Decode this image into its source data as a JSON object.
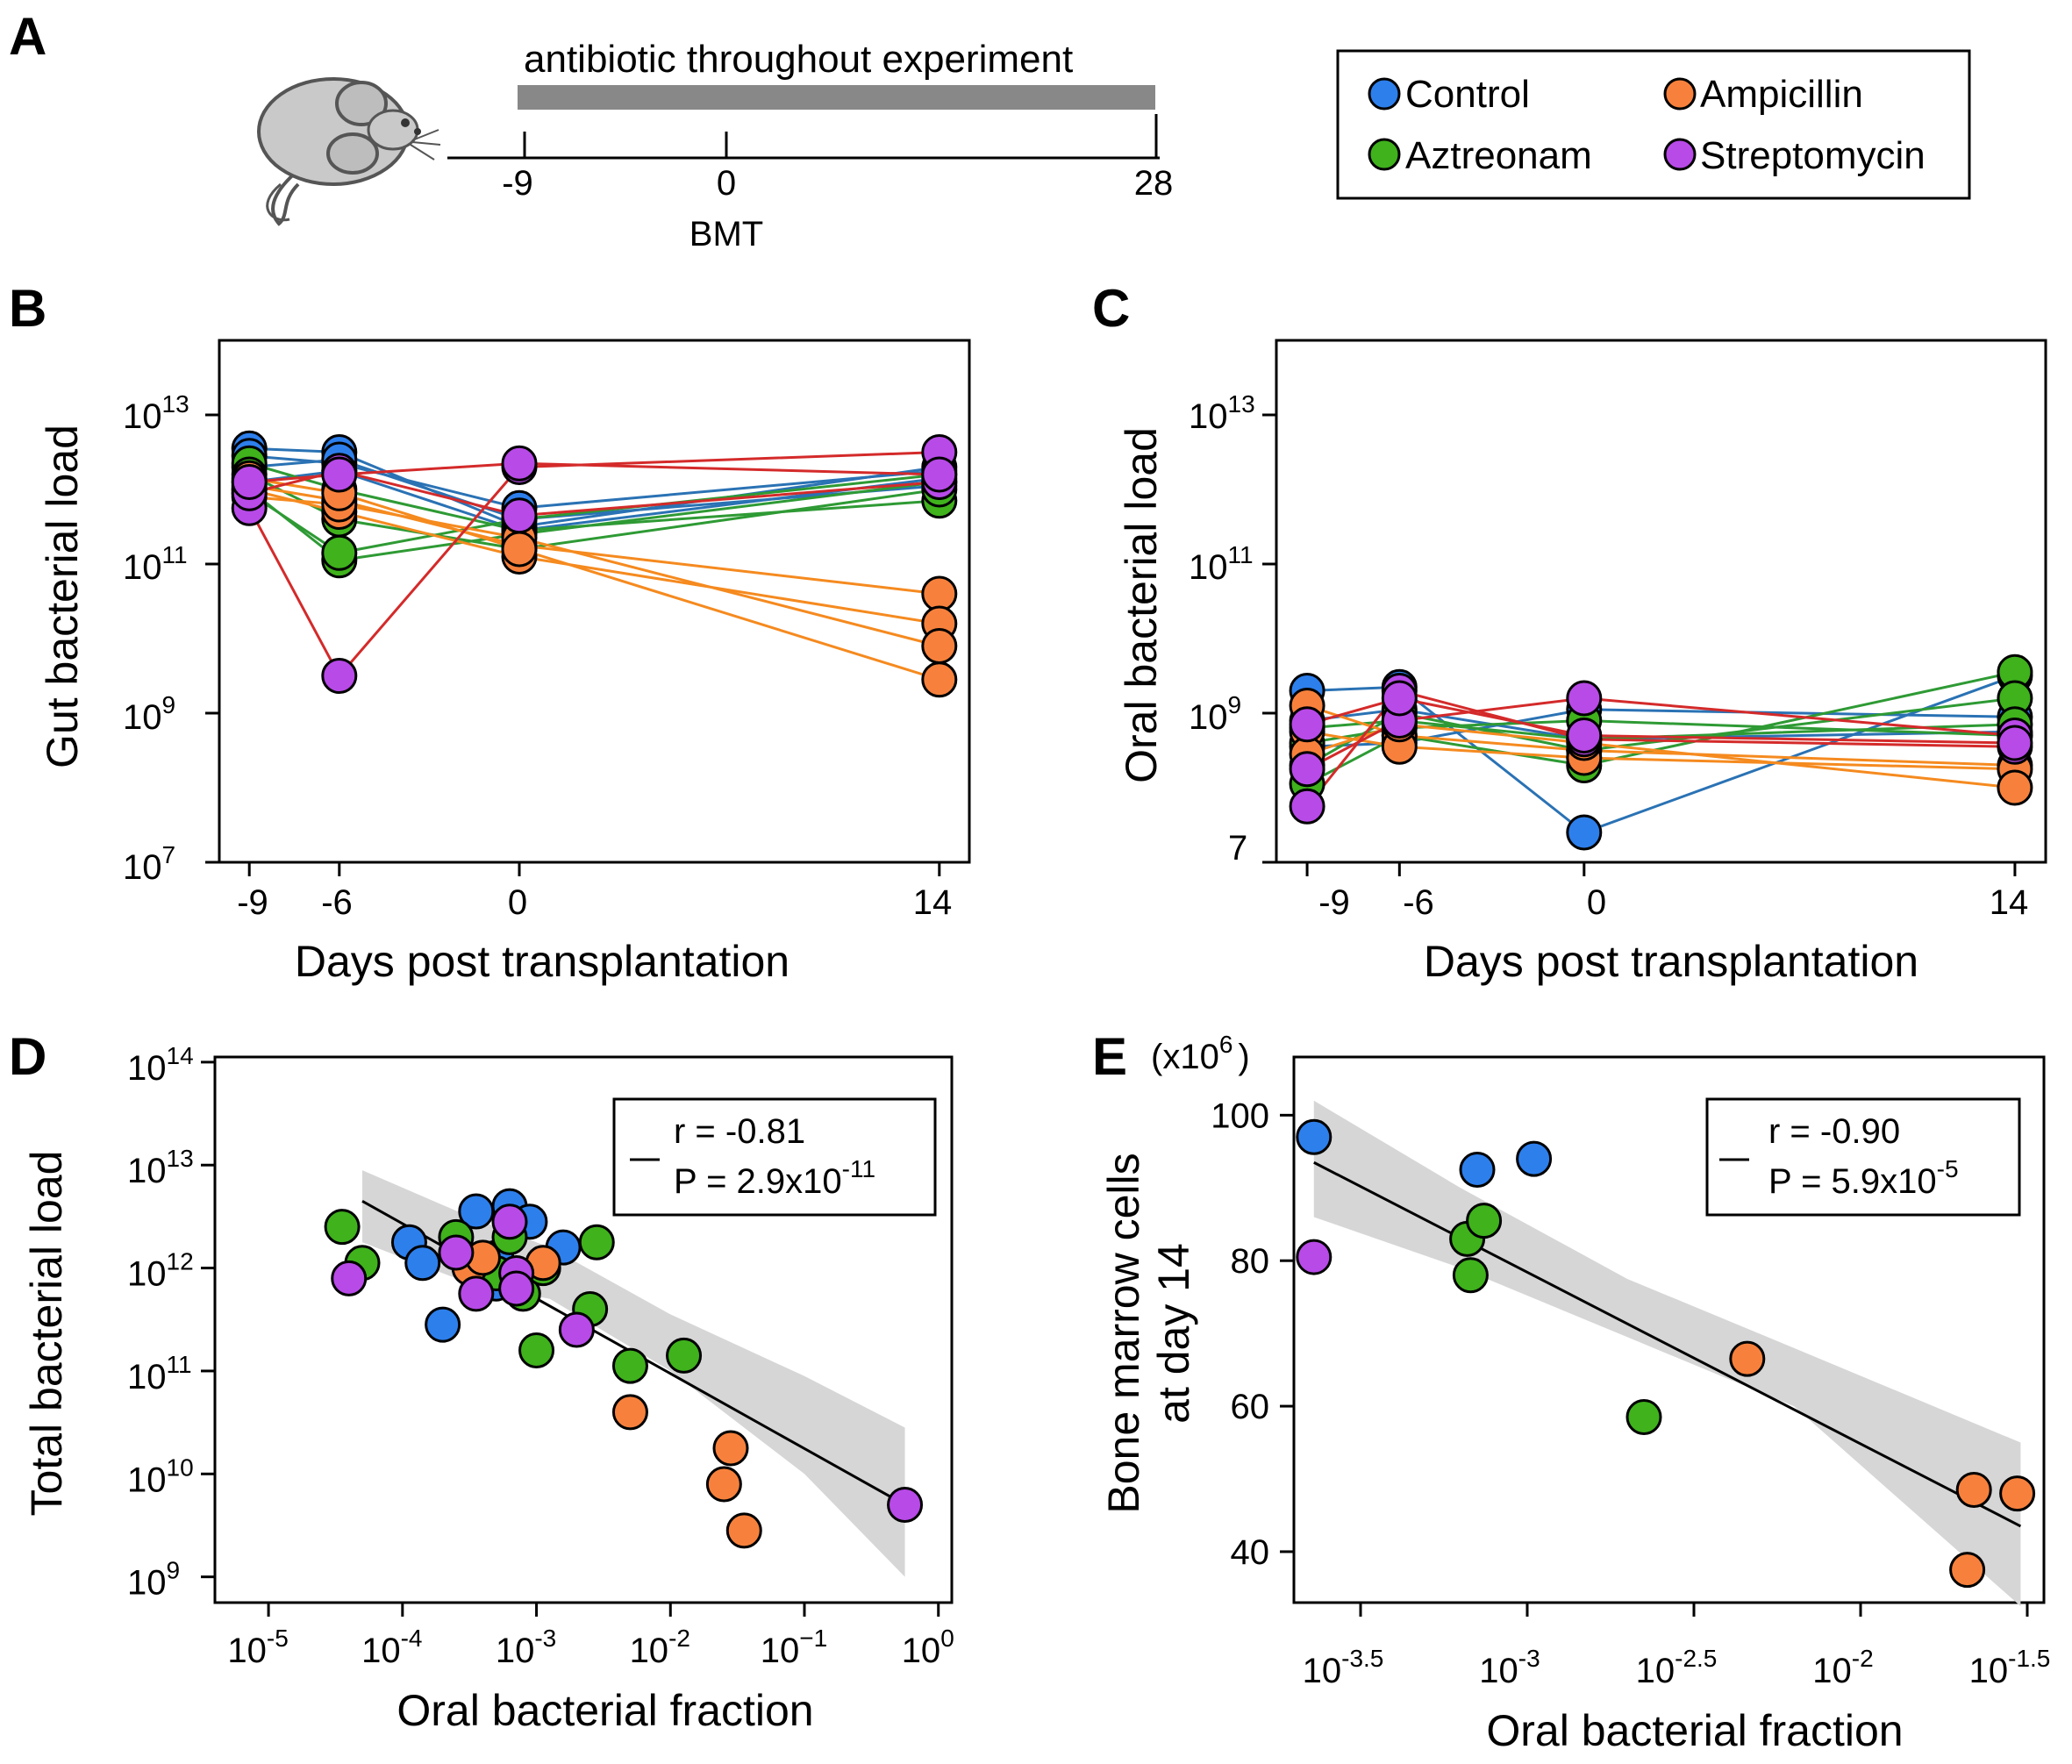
{
  "figure": {
    "panel_labels": [
      "A",
      "B",
      "C",
      "D",
      "E"
    ]
  },
  "colors": {
    "Control": "#2d7fec",
    "Aztreonam": "#3fb21c",
    "Ampicillin": "#f7813c",
    "Streptomycin": "#b84ae8",
    "line_control": "#2a72b4",
    "line_aztreonam": "#2e9a34",
    "line_ampicillin": "#f58a1f",
    "line_streptomycin": "#d42a2a",
    "ci_band": "#d6d6d6",
    "timeline_bar": "#888888"
  },
  "legend": {
    "entries": [
      {
        "label": "Control",
        "color": "#2d7fec"
      },
      {
        "label": "Ampicillin",
        "color": "#f7813c"
      },
      {
        "label": "Aztreonam",
        "color": "#3fb21c"
      },
      {
        "label": "Streptomycin",
        "color": "#b84ae8"
      }
    ]
  },
  "timeline": {
    "bar_label": "antibiotic throughout experiment",
    "ticks": [
      "-9",
      "0",
      "28"
    ],
    "event_label": "BMT",
    "icon": "mouse-icon"
  },
  "panel_b": {
    "ylabel": "Gut bacterial load",
    "xlabel": "Days post transplantation",
    "xticks": [
      "-9",
      "-6",
      "0",
      "14"
    ],
    "ytick_base": "10",
    "yticks": [
      {
        "exp": "7"
      },
      {
        "exp": "9"
      },
      {
        "exp": "11"
      },
      {
        "exp": "13"
      }
    ]
  },
  "panel_c": {
    "ylabel": "Oral bacterial load",
    "xlabel": "Days post transplantation",
    "xticks": [
      "-9",
      "-6",
      "0",
      "14"
    ],
    "yticks": [
      {
        "base": "",
        "exp": "",
        "plain": "7"
      },
      {
        "base": "10",
        "exp": "9"
      },
      {
        "base": "10",
        "exp": "11"
      },
      {
        "base": "10",
        "exp": "13"
      }
    ]
  },
  "panel_d": {
    "ylabel": "Total bacterial load",
    "xlabel": "Oral bacterial fraction",
    "stat_r": "r = -0.81",
    "stat_p": "P = 2.9x10",
    "stat_p_exp": "-11",
    "tick_base": "10",
    "xticks": [
      "-5",
      "-4",
      "-3",
      "-2",
      "−1",
      "0"
    ],
    "yticks": [
      "9",
      "10",
      "11",
      "12",
      "13",
      "14"
    ]
  },
  "panel_e": {
    "ylabel_line1": "Bone marrow cells",
    "ylabel_line2": "at day 14",
    "yunit": "(x10",
    "yunit_exp": "6",
    "yunit_close": ")",
    "xlabel": "Oral bacterial fraction",
    "stat_r": "r = -0.90",
    "stat_p": "P = 5.9x10",
    "stat_p_exp": "-5",
    "tick_base": "10",
    "xticks": [
      "-3.5",
      "-3",
      "-2.5",
      "-2",
      "-1.5"
    ],
    "yticks": [
      "40",
      "60",
      "80",
      "100"
    ]
  },
  "chart_data": [
    {
      "id": "B",
      "type": "line",
      "title": "",
      "xlabel": "Days post transplantation",
      "ylabel": "Gut bacterial load",
      "x": [
        -9,
        -6,
        0,
        14
      ],
      "xlim": [
        -10,
        15
      ],
      "ylim_log10": [
        7,
        14
      ],
      "yscale": "log",
      "series": [
        {
          "group": "Control",
          "log10_values": [
            12.55,
            12.5,
            11.5,
            12.3
          ]
        },
        {
          "group": "Control",
          "log10_values": [
            12.45,
            12.35,
            11.75,
            12.25
          ]
        },
        {
          "group": "Control",
          "log10_values": [
            12.1,
            12.25,
            11.45,
            12.15
          ]
        },
        {
          "group": "Control",
          "log10_values": [
            12.3,
            12.4,
            11.6,
            12.05
          ]
        },
        {
          "group": "Aztreonam",
          "log10_values": [
            12.35,
            12.0,
            11.45,
            11.85
          ]
        },
        {
          "group": "Aztreonam",
          "log10_values": [
            12.2,
            11.6,
            11.2,
            12.0
          ]
        },
        {
          "group": "Aztreonam",
          "log10_values": [
            12.0,
            11.05,
            11.4,
            12.1
          ]
        },
        {
          "group": "Aztreonam",
          "log10_values": [
            11.95,
            11.15,
            11.6,
            12.2
          ]
        },
        {
          "group": "Ampicillin",
          "log10_values": [
            12.05,
            11.85,
            11.25,
            10.6
          ]
        },
        {
          "group": "Ampicillin",
          "log10_values": [
            12.0,
            11.7,
            11.1,
            10.2
          ]
        },
        {
          "group": "Ampicillin",
          "log10_values": [
            11.9,
            11.8,
            11.35,
            9.9
          ]
        },
        {
          "group": "Ampicillin",
          "log10_values": [
            12.15,
            11.95,
            11.2,
            9.45
          ]
        },
        {
          "group": "Streptomycin",
          "log10_values": [
            11.75,
            9.5,
            12.3,
            12.5
          ]
        },
        {
          "group": "Streptomycin",
          "log10_values": [
            11.95,
            12.25,
            11.65,
            12.1
          ]
        },
        {
          "group": "Streptomycin",
          "log10_values": [
            12.1,
            12.2,
            12.35,
            12.2
          ]
        }
      ]
    },
    {
      "id": "C",
      "type": "line",
      "title": "",
      "xlabel": "Days post transplantation",
      "ylabel": "Oral bacterial load",
      "x": [
        -9,
        -6,
        0,
        14
      ],
      "xlim": [
        -10,
        15
      ],
      "ylim_log10": [
        7,
        14
      ],
      "yscale": "log",
      "series": [
        {
          "group": "Control",
          "log10_values": [
            9.3,
            9.35,
            7.4,
            9.5
          ]
        },
        {
          "group": "Control",
          "log10_values": [
            8.55,
            8.6,
            9.05,
            8.95
          ]
        },
        {
          "group": "Control",
          "log10_values": [
            8.9,
            9.05,
            8.65,
            8.75
          ]
        },
        {
          "group": "Aztreonam",
          "log10_values": [
            8.05,
            8.7,
            8.3,
            9.55
          ]
        },
        {
          "group": "Aztreonam",
          "log10_values": [
            8.3,
            9.0,
            8.5,
            9.2
          ]
        },
        {
          "group": "Aztreonam",
          "log10_values": [
            8.6,
            8.8,
            8.9,
            8.7
          ]
        },
        {
          "group": "Aztreonam",
          "log10_values": [
            8.8,
            8.9,
            8.65,
            8.85
          ]
        },
        {
          "group": "Ampicillin",
          "log10_values": [
            9.1,
            8.7,
            8.5,
            8.3
          ]
        },
        {
          "group": "Ampicillin",
          "log10_values": [
            8.75,
            8.55,
            8.4,
            8.25
          ]
        },
        {
          "group": "Ampicillin",
          "log10_values": [
            8.45,
            8.85,
            8.6,
            8.0
          ]
        },
        {
          "group": "Streptomycin",
          "log10_values": [
            7.75,
            9.3,
            8.65,
            8.55
          ]
        },
        {
          "group": "Streptomycin",
          "log10_values": [
            8.25,
            8.9,
            9.2,
            8.7
          ]
        },
        {
          "group": "Streptomycin",
          "log10_values": [
            8.85,
            9.2,
            8.7,
            8.6
          ]
        }
      ]
    },
    {
      "id": "D",
      "type": "scatter",
      "title": "",
      "xlabel": "Oral bacterial fraction",
      "ylabel": "Total bacterial load",
      "xscale": "log",
      "yscale": "log",
      "xlim_log10": [
        -5,
        0
      ],
      "ylim_log10": [
        9,
        14
      ],
      "stats": {
        "r": -0.81,
        "P": "2.9x10^-11"
      },
      "fit_log10": {
        "x": [
          -4.3,
          -0.25
        ],
        "y": [
          12.65,
          9.7
        ]
      },
      "ci_upper_log10": [
        12.95,
        12.5,
        12.2,
        11.55,
        10.95,
        10.45
      ],
      "ci_lower_log10": [
        12.25,
        11.85,
        11.7,
        11.0,
        10.0,
        9.0
      ],
      "ci_x_log10": [
        -4.3,
        -3.5,
        -2.9,
        -2.0,
        -1.0,
        -0.25
      ],
      "points": [
        {
          "group": "Control",
          "log10_x": -3.95,
          "log10_y": 12.25
        },
        {
          "group": "Control",
          "log10_x": -3.85,
          "log10_y": 12.05
        },
        {
          "group": "Control",
          "log10_x": -3.45,
          "log10_y": 12.55
        },
        {
          "group": "Control",
          "log10_x": -3.2,
          "log10_y": 12.6
        },
        {
          "group": "Control",
          "log10_x": -3.3,
          "log10_y": 12.1
        },
        {
          "group": "Control",
          "log10_x": -3.05,
          "log10_y": 12.45
        },
        {
          "group": "Control",
          "log10_x": -2.8,
          "log10_y": 12.2
        },
        {
          "group": "Control",
          "log10_x": -3.7,
          "log10_y": 11.45
        },
        {
          "group": "Control",
          "log10_x": -3.3,
          "log10_y": 11.85
        },
        {
          "group": "Aztreonam",
          "log10_x": -4.45,
          "log10_y": 12.4
        },
        {
          "group": "Aztreonam",
          "log10_x": -4.3,
          "log10_y": 12.05
        },
        {
          "group": "Aztreonam",
          "log10_x": -3.6,
          "log10_y": 12.3
        },
        {
          "group": "Aztreonam",
          "log10_x": -3.2,
          "log10_y": 12.3
        },
        {
          "group": "Aztreonam",
          "log10_x": -3.3,
          "log10_y": 11.95
        },
        {
          "group": "Aztreonam",
          "log10_x": -3.1,
          "log10_y": 11.75
        },
        {
          "group": "Aztreonam",
          "log10_x": -2.95,
          "log10_y": 12.0
        },
        {
          "group": "Aztreonam",
          "log10_x": -2.55,
          "log10_y": 12.25
        },
        {
          "group": "Aztreonam",
          "log10_x": -2.6,
          "log10_y": 11.6
        },
        {
          "group": "Aztreonam",
          "log10_x": -3.0,
          "log10_y": 11.2
        },
        {
          "group": "Aztreonam",
          "log10_x": -2.3,
          "log10_y": 11.05
        },
        {
          "group": "Aztreonam",
          "log10_x": -1.9,
          "log10_y": 11.15
        },
        {
          "group": "Ampicillin",
          "log10_x": -3.5,
          "log10_y": 12.0
        },
        {
          "group": "Ampicillin",
          "log10_x": -3.4,
          "log10_y": 12.1
        },
        {
          "group": "Ampicillin",
          "log10_x": -2.95,
          "log10_y": 12.05
        },
        {
          "group": "Ampicillin",
          "log10_x": -2.3,
          "log10_y": 10.6
        },
        {
          "group": "Ampicillin",
          "log10_x": -1.55,
          "log10_y": 10.25
        },
        {
          "group": "Ampicillin",
          "log10_x": -1.6,
          "log10_y": 9.9
        },
        {
          "group": "Ampicillin",
          "log10_x": -1.45,
          "log10_y": 9.45
        },
        {
          "group": "Streptomycin",
          "log10_x": -4.4,
          "log10_y": 11.9
        },
        {
          "group": "Streptomycin",
          "log10_x": -3.6,
          "log10_y": 12.15
        },
        {
          "group": "Streptomycin",
          "log10_x": -3.45,
          "log10_y": 11.75
        },
        {
          "group": "Streptomycin",
          "log10_x": -3.2,
          "log10_y": 12.45
        },
        {
          "group": "Streptomycin",
          "log10_x": -3.15,
          "log10_y": 11.95
        },
        {
          "group": "Streptomycin",
          "log10_x": -3.15,
          "log10_y": 11.8
        },
        {
          "group": "Streptomycin",
          "log10_x": -2.7,
          "log10_y": 11.4
        },
        {
          "group": "Streptomycin",
          "log10_x": -0.25,
          "log10_y": 9.7
        }
      ]
    },
    {
      "id": "E",
      "type": "scatter",
      "title": "",
      "xlabel": "Oral bacterial fraction",
      "ylabel": "Bone marrow cells at day 14",
      "xscale": "log",
      "xlim_log10": [
        -3.7,
        -1.45
      ],
      "ylim": [
        33,
        108
      ],
      "stats": {
        "r": -0.9,
        "P": "5.9x10^-5"
      },
      "fit": {
        "log10_x": [
          -3.64,
          -1.52
        ],
        "y": [
          93.5,
          43.5
        ]
      },
      "ci_x_log10": [
        -3.64,
        -3.2,
        -2.7,
        -2.2,
        -1.52
      ],
      "ci_upper": [
        102.0,
        90.0,
        77.5,
        68.0,
        55.0
      ],
      "ci_lower": [
        86.0,
        79.0,
        69.5,
        60.0,
        32.5
      ],
      "points": [
        {
          "group": "Control",
          "log10_x": -3.64,
          "y": 97
        },
        {
          "group": "Control",
          "log10_x": -3.15,
          "y": 92.5
        },
        {
          "group": "Control",
          "log10_x": -2.98,
          "y": 94
        },
        {
          "group": "Aztreonam",
          "log10_x": -3.18,
          "y": 83
        },
        {
          "group": "Aztreonam",
          "log10_x": -3.13,
          "y": 85.5
        },
        {
          "group": "Aztreonam",
          "log10_x": -3.17,
          "y": 78
        },
        {
          "group": "Aztreonam",
          "log10_x": -2.65,
          "y": 58.5
        },
        {
          "group": "Ampicillin",
          "log10_x": -2.34,
          "y": 66.5
        },
        {
          "group": "Ampicillin",
          "log10_x": -1.66,
          "y": 48.5
        },
        {
          "group": "Ampicillin",
          "log10_x": -1.53,
          "y": 48
        },
        {
          "group": "Ampicillin",
          "log10_x": -1.68,
          "y": 37.5
        },
        {
          "group": "Streptomycin",
          "log10_x": -3.64,
          "y": 80.5
        }
      ]
    }
  ]
}
